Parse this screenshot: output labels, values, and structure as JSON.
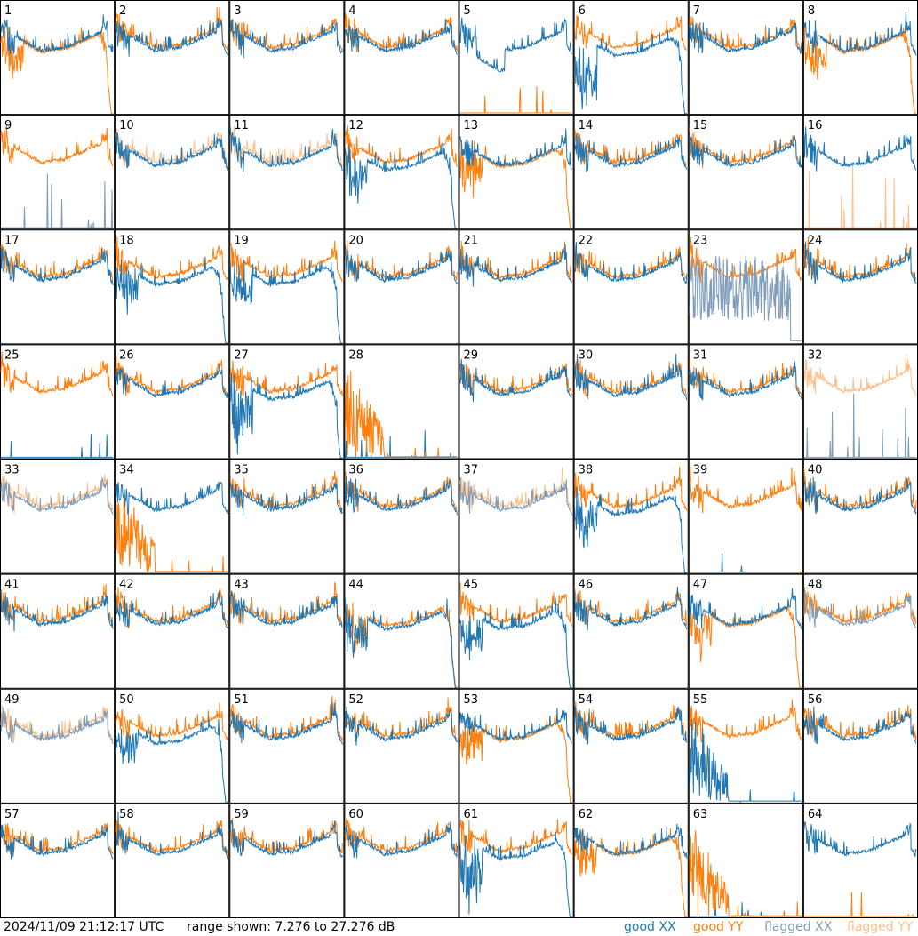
{
  "footer": {
    "timestamp": "2024/11/09 21:12:17 UTC",
    "range_text": "range shown: 7.276 to 27.276 dB"
  },
  "legend": [
    {
      "label": "good XX",
      "color": "#1f77b4"
    },
    {
      "label": "good YY",
      "color": "#ff7f0e"
    },
    {
      "label": "flagged XX",
      "color": "#7f9cb8"
    },
    {
      "label": "flagged YY",
      "color": "#ffbf8a"
    }
  ],
  "chart_data": {
    "type": "line",
    "ylim": [
      7.276,
      27.276
    ],
    "grid": "8x8 small multiples",
    "series_names": [
      "good XX",
      "good YY",
      "flagged XX",
      "flagged YY"
    ],
    "panel_labels": [
      "1",
      "2",
      "3",
      "4",
      "5",
      "6",
      "7",
      "8",
      "9",
      "10",
      "11",
      "12",
      "13",
      "14",
      "15",
      "16",
      "17",
      "18",
      "19",
      "20",
      "21",
      "22",
      "23",
      "24",
      "25",
      "26",
      "27",
      "28",
      "29",
      "30",
      "31",
      "32",
      "33",
      "34",
      "35",
      "36",
      "37",
      "38",
      "39",
      "40",
      "41",
      "42",
      "43",
      "44",
      "45",
      "46",
      "47",
      "48",
      "49",
      "50",
      "51",
      "52",
      "53",
      "54",
      "55",
      "56",
      "57",
      "58",
      "59",
      "60",
      "61",
      "62",
      "63",
      "64"
    ],
    "panels": {
      "1": {
        "xx": "sky",
        "yy": "rolloff",
        "yyRaise": 0
      },
      "2": {
        "xx": "sky",
        "yy": "sky"
      },
      "3": {
        "xx": "sky",
        "yy": "sky"
      },
      "4": {
        "xx": "sky",
        "yy": "sky"
      },
      "5": {
        "xx": "dip",
        "yy": "dead"
      },
      "6": {
        "xx": "rolloff",
        "yy": "sky",
        "noisyXX": true
      },
      "7": {
        "xx": "sky",
        "yy": "sky"
      },
      "8": {
        "xx": "sky",
        "yy": "rolloff"
      },
      "9": {
        "xx": "flagdead",
        "yy": "sky"
      },
      "10": {
        "xx": "sky",
        "yy": "flagsky"
      },
      "11": {
        "xx": "sky",
        "yy": "flagsky"
      },
      "12": {
        "xx": "rolloff",
        "yy": "sky"
      },
      "13": {
        "xx": "sky",
        "yy": "rolloff"
      },
      "14": {
        "xx": "sky",
        "yy": "sky"
      },
      "15": {
        "xx": "sky",
        "yy": "sky"
      },
      "16": {
        "xx": "sky",
        "yy": "flagdead"
      },
      "17": {
        "xx": "sky",
        "yy": "sky"
      },
      "18": {
        "xx": "rolloff",
        "yy": "sky"
      },
      "19": {
        "xx": "rolloff",
        "yy": "sky"
      },
      "20": {
        "xx": "sky",
        "yy": "sky"
      },
      "21": {
        "xx": "sky",
        "yy": "sky"
      },
      "22": {
        "xx": "sky",
        "yy": "sky"
      },
      "23": {
        "xx": "flagnoise",
        "yy": "sky"
      },
      "24": {
        "xx": "sky",
        "yy": "sky"
      },
      "25": {
        "xx": "dead",
        "yy": "sky"
      },
      "26": {
        "xx": "sky",
        "yy": "sky"
      },
      "27": {
        "xx": "rolloff",
        "yy": "sky",
        "noisyXX": true
      },
      "28": {
        "xx": "dead",
        "yy": "burst"
      },
      "29": {
        "xx": "sky",
        "yy": "sky"
      },
      "30": {
        "xx": "sky",
        "yy": "sky"
      },
      "31": {
        "xx": "sky",
        "yy": "sky"
      },
      "32": {
        "xx": "flagdead",
        "yy": "flagsky"
      },
      "33": {
        "xx": "flagsky",
        "yy": "flagsky"
      },
      "34": {
        "xx": "sky",
        "yy": "burst"
      },
      "35": {
        "xx": "sky",
        "yy": "sky"
      },
      "36": {
        "xx": "sky",
        "yy": "sky"
      },
      "37": {
        "xx": "flagsky",
        "yy": "flagsky"
      },
      "38": {
        "xx": "rolloff",
        "yy": "sky"
      },
      "39": {
        "xx": "dead",
        "yy": "sky"
      },
      "40": {
        "xx": "sky",
        "yy": "sky"
      },
      "41": {
        "xx": "sky",
        "yy": "sky"
      },
      "42": {
        "xx": "sky",
        "yy": "sky"
      },
      "43": {
        "xx": "sky",
        "yy": "sky"
      },
      "44": {
        "xx": "rolloff",
        "yy": "rolloff"
      },
      "45": {
        "xx": "rolloff",
        "yy": "sky"
      },
      "46": {
        "xx": "sky",
        "yy": "sky"
      },
      "47": {
        "xx": "sky",
        "yy": "rolloff"
      },
      "48": {
        "xx": "flagsky",
        "yy": "sky"
      },
      "49": {
        "xx": "flagsky",
        "yy": "flagsky"
      },
      "50": {
        "xx": "rolloff",
        "yy": "sky"
      },
      "51": {
        "xx": "sky",
        "yy": "sky"
      },
      "52": {
        "xx": "sky",
        "yy": "sky"
      },
      "53": {
        "xx": "sky",
        "yy": "rolloff"
      },
      "54": {
        "xx": "sky",
        "yy": "sky"
      },
      "55": {
        "xx": "burst",
        "yy": "sky"
      },
      "56": {
        "xx": "sky",
        "yy": "sky"
      },
      "57": {
        "xx": "sky",
        "yy": "sky"
      },
      "58": {
        "xx": "sky",
        "yy": "sky"
      },
      "59": {
        "xx": "sky",
        "yy": "sky"
      },
      "60": {
        "xx": "sky",
        "yy": "sky"
      },
      "61": {
        "xx": "rolloff",
        "yy": "sky",
        "noisyXX": true
      },
      "62": {
        "xx": "sky",
        "yy": "rolloff"
      },
      "63": {
        "xx": "dead",
        "yy": "burst"
      },
      "64": {
        "xx": "sky",
        "yy": "dead"
      }
    }
  }
}
